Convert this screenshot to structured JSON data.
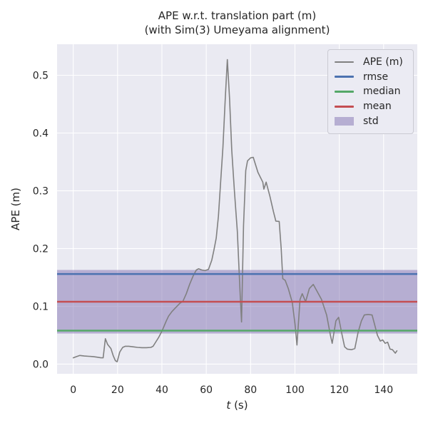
{
  "figure": {
    "background": "#ffffff"
  },
  "chart_data": {
    "type": "line",
    "title_line1": "APE w.r.t. translation part (m)",
    "title_line2": "(with Sim(3) Umeyama alignment)",
    "xlabel_var": "t",
    "xlabel_unit": " (s)",
    "ylabel": "APE (m)",
    "xlim": [
      -7.3,
      155.2
    ],
    "ylim": [
      -0.0167,
      0.5537
    ],
    "grid": true,
    "legend_position": "upper right",
    "plot_bg": "#eaeaf2",
    "grid_color": "#ffffff",
    "text_color": "#262626",
    "x_ticks": [
      {
        "value": 0,
        "label": "0"
      },
      {
        "value": 20,
        "label": "20"
      },
      {
        "value": 40,
        "label": "40"
      },
      {
        "value": 60,
        "label": "60"
      },
      {
        "value": 80,
        "label": "80"
      },
      {
        "value": 100,
        "label": "100"
      },
      {
        "value": 120,
        "label": "120"
      },
      {
        "value": 140,
        "label": "140"
      }
    ],
    "y_ticks": [
      {
        "value": 0.0,
        "label": "0.0"
      },
      {
        "value": 0.1,
        "label": "0.1"
      },
      {
        "value": 0.2,
        "label": "0.2"
      },
      {
        "value": 0.3,
        "label": "0.3"
      },
      {
        "value": 0.4,
        "label": "0.4"
      },
      {
        "value": 0.5,
        "label": "0.5"
      }
    ],
    "stats": {
      "rmse": 0.156,
      "mean": 0.108,
      "median": 0.058,
      "std": 0.055
    },
    "series": [
      {
        "name": "APE (m)",
        "type": "line",
        "color": "#808080",
        "width": 1.6,
        "points": [
          [
            0,
            0.011
          ],
          [
            1.5,
            0.013
          ],
          [
            3,
            0.015
          ],
          [
            5,
            0.014
          ],
          [
            7,
            0.0135
          ],
          [
            9,
            0.013
          ],
          [
            11,
            0.012
          ],
          [
            12.5,
            0.011
          ],
          [
            13.5,
            0.011
          ],
          [
            14.5,
            0.044
          ],
          [
            15.5,
            0.034
          ],
          [
            17,
            0.027
          ],
          [
            18,
            0.015
          ],
          [
            19,
            0.006
          ],
          [
            19.8,
            0.004
          ],
          [
            21,
            0.021
          ],
          [
            22.3,
            0.029
          ],
          [
            23.5,
            0.031
          ],
          [
            25,
            0.031
          ],
          [
            27,
            0.03
          ],
          [
            29,
            0.029
          ],
          [
            31,
            0.0285
          ],
          [
            33,
            0.0285
          ],
          [
            35,
            0.029
          ],
          [
            36,
            0.031
          ],
          [
            37,
            0.037
          ],
          [
            38.5,
            0.046
          ],
          [
            40,
            0.057
          ],
          [
            41,
            0.066
          ],
          [
            42,
            0.075
          ],
          [
            43,
            0.083
          ],
          [
            44.5,
            0.091
          ],
          [
            46,
            0.097
          ],
          [
            48,
            0.105
          ],
          [
            49.5,
            0.109
          ],
          [
            51,
            0.122
          ],
          [
            52.5,
            0.138
          ],
          [
            54,
            0.152
          ],
          [
            55.5,
            0.163
          ],
          [
            56.5,
            0.165
          ],
          [
            58,
            0.163
          ],
          [
            59.5,
            0.162
          ],
          [
            61,
            0.164
          ],
          [
            62.5,
            0.18
          ],
          [
            63.5,
            0.198
          ],
          [
            64.5,
            0.218
          ],
          [
            65.5,
            0.256
          ],
          [
            66.5,
            0.315
          ],
          [
            67.5,
            0.375
          ],
          [
            68.5,
            0.455
          ],
          [
            69.5,
            0.527
          ],
          [
            70.5,
            0.46
          ],
          [
            71.5,
            0.37
          ],
          [
            72.7,
            0.3
          ],
          [
            74,
            0.23
          ],
          [
            75.3,
            0.12
          ],
          [
            75.9,
            0.073
          ],
          [
            76.8,
            0.24
          ],
          [
            77.8,
            0.335
          ],
          [
            78.6,
            0.352
          ],
          [
            80,
            0.357
          ],
          [
            81.2,
            0.358
          ],
          [
            83.3,
            0.332
          ],
          [
            85.5,
            0.315
          ],
          [
            86,
            0.303
          ],
          [
            87,
            0.315
          ],
          [
            88.7,
            0.291
          ],
          [
            90.3,
            0.264
          ],
          [
            91.4,
            0.2475
          ],
          [
            92.9,
            0.247
          ],
          [
            93.8,
            0.2
          ],
          [
            94.5,
            0.148
          ],
          [
            95.6,
            0.145
          ],
          [
            97,
            0.131
          ],
          [
            98.8,
            0.107
          ],
          [
            100,
            0.07
          ],
          [
            100.9,
            0.033
          ],
          [
            102.3,
            0.112
          ],
          [
            103.3,
            0.122
          ],
          [
            104.8,
            0.108
          ],
          [
            106.5,
            0.131
          ],
          [
            108.3,
            0.138
          ],
          [
            110,
            0.126
          ],
          [
            112,
            0.112
          ],
          [
            114.3,
            0.085
          ],
          [
            116,
            0.05
          ],
          [
            116.8,
            0.036
          ],
          [
            118.5,
            0.075
          ],
          [
            119.7,
            0.081
          ],
          [
            121.2,
            0.052
          ],
          [
            122.4,
            0.03
          ],
          [
            123.6,
            0.026
          ],
          [
            125.5,
            0.025
          ],
          [
            127,
            0.027
          ],
          [
            128.5,
            0.055
          ],
          [
            130,
            0.075
          ],
          [
            131.3,
            0.085
          ],
          [
            133,
            0.086
          ],
          [
            134.8,
            0.085
          ],
          [
            136,
            0.068
          ],
          [
            137.2,
            0.05
          ],
          [
            138.5,
            0.04
          ],
          [
            139.6,
            0.042
          ],
          [
            140.7,
            0.036
          ],
          [
            141.8,
            0.038
          ],
          [
            142.9,
            0.026
          ],
          [
            144,
            0.025
          ],
          [
            145.3,
            0.019
          ],
          [
            146,
            0.023
          ]
        ]
      },
      {
        "name": "rmse",
        "type": "hline",
        "color": "#4c72b0",
        "width": 2.6,
        "value": 0.156
      },
      {
        "name": "median",
        "type": "hline",
        "color": "#55a868",
        "width": 2.6,
        "value": 0.058
      },
      {
        "name": "mean",
        "type": "hline",
        "color": "#c44e52",
        "width": 2.6,
        "value": 0.108
      },
      {
        "name": "std",
        "type": "band",
        "color": "#8172b2",
        "opacity": 0.5,
        "range": [
          0.053,
          0.163
        ]
      }
    ],
    "legend": {
      "items": [
        {
          "label": "APE (m)",
          "swatch": "line",
          "color": "#808080"
        },
        {
          "label": "rmse",
          "swatch": "line",
          "color": "#4c72b0"
        },
        {
          "label": "median",
          "swatch": "line",
          "color": "#55a868"
        },
        {
          "label": "mean",
          "swatch": "line",
          "color": "#c44e52"
        },
        {
          "label": "std",
          "swatch": "patch",
          "color": "#8172b2"
        }
      ]
    }
  }
}
